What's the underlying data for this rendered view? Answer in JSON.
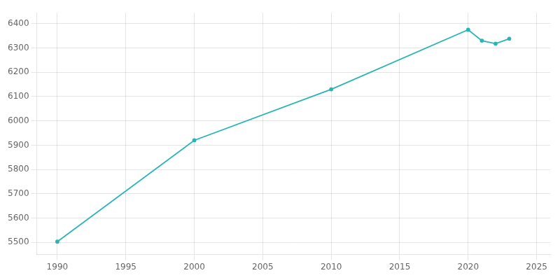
{
  "chart_data": {
    "type": "line",
    "x": [
      1990,
      2000,
      2010,
      2020,
      2021,
      2022,
      2023
    ],
    "series": [
      {
        "values": [
          5503,
          5920,
          6130,
          6375,
          6330,
          6318,
          6338
        ],
        "color": "#2ab5b5",
        "marker": "circle"
      }
    ],
    "xlim": [
      1988.5,
      2026
    ],
    "xticks": [
      1990,
      1995,
      2000,
      2005,
      2010,
      2015,
      2020,
      2025
    ],
    "ylim": [
      5450,
      6445
    ],
    "yticks": [
      5500,
      5600,
      5700,
      5800,
      5900,
      6000,
      6100,
      6200,
      6300,
      6400
    ],
    "grid": true
  }
}
